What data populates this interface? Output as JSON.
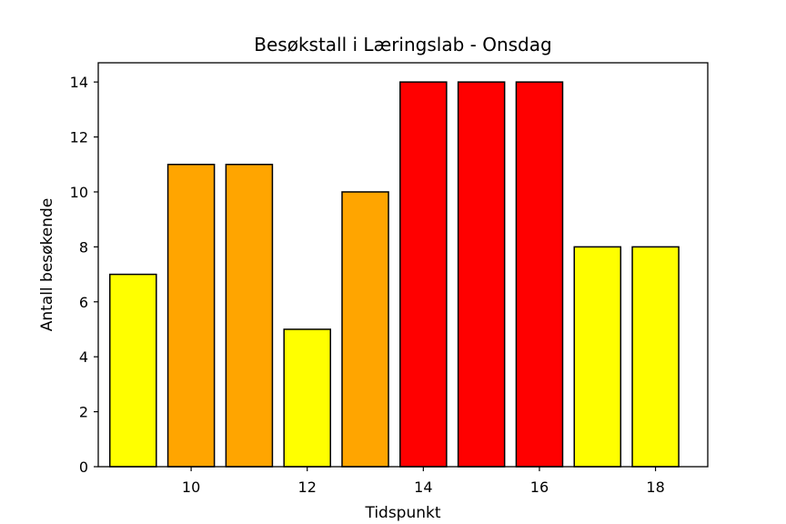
{
  "chart_data": {
    "type": "bar",
    "title": "Besøkstall i Læringslab - Onsdag",
    "xlabel": "Tidspunkt",
    "ylabel": "Antall besøkende",
    "x": [
      9,
      10,
      11,
      12,
      13,
      14,
      15,
      16,
      17,
      18
    ],
    "values": [
      7,
      11,
      11,
      5,
      10,
      14,
      14,
      14,
      8,
      8
    ],
    "bar_colors": [
      "#ffff00",
      "#ffa500",
      "#ffa500",
      "#ffff00",
      "#ffa500",
      "#ff0000",
      "#ff0000",
      "#ff0000",
      "#ffff00",
      "#ffff00"
    ],
    "bar_edge_color": "#000000",
    "xlim": [
      8.4,
      18.9
    ],
    "ylim": [
      0,
      14.7
    ],
    "xticks": [
      10,
      12,
      14,
      16,
      18
    ],
    "yticks": [
      0,
      2,
      4,
      6,
      8,
      10,
      12,
      14
    ],
    "grid": false,
    "legend": "none"
  }
}
